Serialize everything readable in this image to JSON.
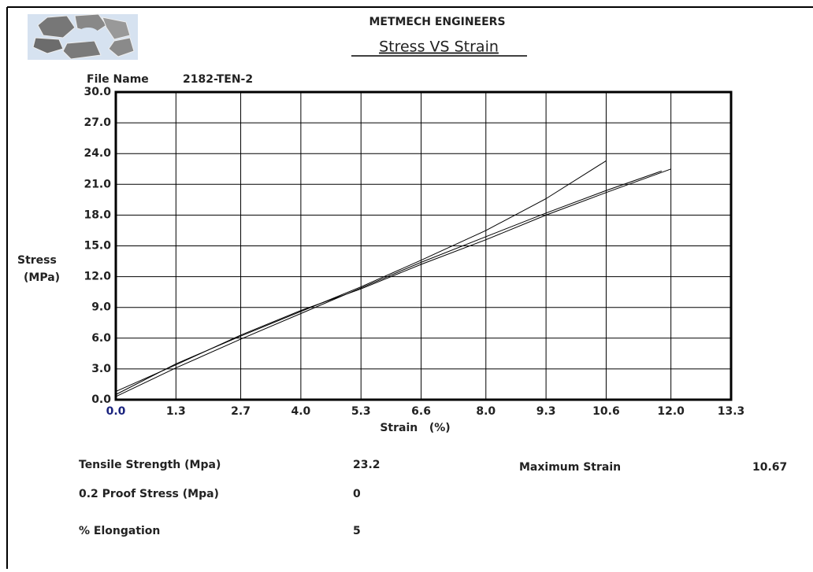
{
  "header": {
    "company": "METMECH ENGINEERS",
    "file_name_label": "File Name",
    "file_name": "2182-TEN-2"
  },
  "chart_data": {
    "type": "line",
    "title": "Stress VS Strain",
    "x_label": "Strain   (%)",
    "y_label_lines": [
      "Stress",
      "(MPa)"
    ],
    "xlim": [
      0,
      13.3
    ],
    "ylim": [
      0,
      30
    ],
    "xticks": [
      {
        "value": 0,
        "label": "0.0"
      },
      1.3,
      2.7,
      {
        "value": 4,
        "label": "4.0"
      },
      5.3,
      6.6,
      {
        "value": 8,
        "label": "8.0"
      },
      9.3,
      10.6,
      {
        "value": 12,
        "label": "12.0"
      },
      13.3
    ],
    "yticks": [
      {
        "value": 0,
        "label": "0.0"
      },
      {
        "value": 3,
        "label": "3.0"
      },
      {
        "value": 6,
        "label": "6.0"
      },
      {
        "value": 9,
        "label": "9.0"
      },
      {
        "value": 12,
        "label": "12.0"
      },
      {
        "value": 15,
        "label": "15.0"
      },
      {
        "value": 18,
        "label": "18.0"
      },
      {
        "value": 21,
        "label": "21.0"
      },
      {
        "value": 24,
        "label": "24.0"
      },
      {
        "value": 27,
        "label": "27.0"
      },
      {
        "value": 30,
        "label": "30.0"
      }
    ],
    "grid": true,
    "series": [
      {
        "color": "#000000",
        "x": [
          0,
          1.3,
          2.7,
          4,
          5.3,
          6.6,
          8,
          9.3,
          10.6
        ],
        "values": [
          0.5,
          3.5,
          6.2,
          8.6,
          11,
          13.6,
          16.5,
          19.6,
          23.3
        ]
      },
      {
        "color": "#000000",
        "x": [
          0,
          1.3,
          2.7,
          4,
          5.3,
          6.6,
          8,
          9.3,
          10.6,
          12
        ],
        "values": [
          0.8,
          3.4,
          6.3,
          8.7,
          10.8,
          13.2,
          15.6,
          18,
          20.2,
          22.5
        ]
      },
      {
        "color": "#000000",
        "x": [
          0,
          1.3,
          2.7,
          4,
          5.3,
          6.6,
          8,
          9.3,
          10.6,
          11.8
        ],
        "values": [
          0.3,
          3.1,
          5.9,
          8.4,
          10.9,
          13.4,
          15.9,
          18.2,
          20.4,
          22.3
        ]
      }
    ]
  },
  "results": [
    {
      "label": "Tensile Strength (Mpa)",
      "value": 23.2
    },
    {
      "label": "0.2 Proof Stress (Mpa)",
      "value": 0
    },
    {
      "label": "% Elongation",
      "value": 5
    },
    {
      "label": "Maximum Strain",
      "value": 10.67
    }
  ]
}
